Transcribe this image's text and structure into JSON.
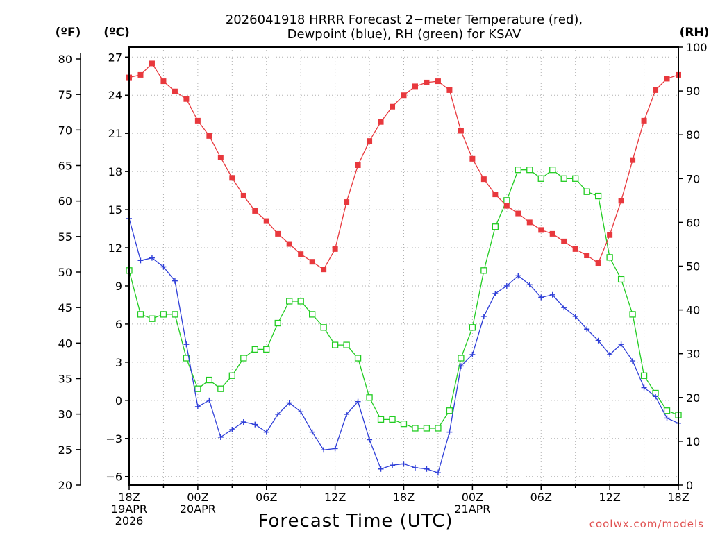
{
  "chart_data": {
    "type": "line",
    "title_line1": "2026041918 HRRR Forecast 2−meter Temperature (red),",
    "title_line2": "Dewpoint (blue), RH (green) for KSAV",
    "xlabel": "Forecast Time (UTC)",
    "credit": "coolwx.com/models",
    "unit_f": "(ºF)",
    "unit_c": "(ºC)",
    "unit_rh": "(RH)",
    "hours_range": [
      0,
      48
    ],
    "celsius_range": [
      -6.67,
      27.78
    ],
    "rh_range": [
      0,
      100
    ],
    "fahrenheit_ticks": [
      "20",
      "25",
      "30",
      "35",
      "40",
      "45",
      "50",
      "55",
      "60",
      "65",
      "70",
      "75",
      "80"
    ],
    "fahrenheit_values": [
      20,
      25,
      30,
      35,
      40,
      45,
      50,
      55,
      60,
      65,
      70,
      75,
      80
    ],
    "celsius_ticks": [
      "−6",
      "−3",
      "0",
      "3",
      "6",
      "9",
      "12",
      "15",
      "18",
      "21",
      "24",
      "27"
    ],
    "celsius_values": [
      -6,
      -3,
      0,
      3,
      6,
      9,
      12,
      15,
      18,
      21,
      24,
      27
    ],
    "rh_ticks": [
      "0",
      "10",
      "20",
      "30",
      "40",
      "50",
      "60",
      "70",
      "80",
      "90",
      "100"
    ],
    "rh_values": [
      0,
      10,
      20,
      30,
      40,
      50,
      60,
      70,
      80,
      90,
      100
    ],
    "x_ticks": [
      {
        "hour": 0,
        "lines": [
          "18Z",
          "19APR",
          "2026"
        ]
      },
      {
        "hour": 6,
        "lines": [
          "00Z",
          "20APR"
        ]
      },
      {
        "hour": 12,
        "lines": [
          "06Z"
        ]
      },
      {
        "hour": 18,
        "lines": [
          "12Z"
        ]
      },
      {
        "hour": 24,
        "lines": [
          "18Z"
        ]
      },
      {
        "hour": 30,
        "lines": [
          "00Z",
          "21APR"
        ]
      },
      {
        "hour": 36,
        "lines": [
          "06Z"
        ]
      },
      {
        "hour": 42,
        "lines": [
          "12Z"
        ]
      },
      {
        "hour": 48,
        "lines": [
          "18Z"
        ]
      }
    ],
    "colors": {
      "temperature": "#e8383d",
      "dewpoint": "#2f3fd8",
      "rh": "#22cc22",
      "grid": "#b0b0b0"
    },
    "series": [
      {
        "name": "Temperature",
        "unit": "C",
        "hours": [
          0,
          1,
          2,
          3,
          4,
          5,
          6,
          7,
          8,
          9,
          10,
          11,
          12,
          13,
          14,
          15,
          16,
          17,
          18,
          19,
          20,
          21,
          22,
          23,
          24,
          25,
          26,
          27,
          28,
          29,
          30,
          31,
          32,
          33,
          34,
          35,
          36,
          37,
          38,
          39,
          40,
          41,
          42,
          43,
          44,
          45,
          46,
          47,
          48
        ],
        "values": [
          25.4,
          25.6,
          26.5,
          25.1,
          24.3,
          23.7,
          22.0,
          20.8,
          19.1,
          17.5,
          16.1,
          14.9,
          14.1,
          13.1,
          12.3,
          11.5,
          10.9,
          10.3,
          11.9,
          15.6,
          18.5,
          20.4,
          21.9,
          23.1,
          24.0,
          24.7,
          25.0,
          25.1,
          24.4,
          21.2,
          19.0,
          17.4,
          16.2,
          15.3,
          14.7,
          14.0,
          13.4,
          13.1,
          12.5,
          11.9,
          11.4,
          10.8,
          13.0,
          15.7,
          18.9,
          22.0,
          24.4,
          25.3,
          25.6
        ]
      },
      {
        "name": "Dewpoint",
        "unit": "C",
        "hours": [
          0,
          1,
          2,
          3,
          4,
          5,
          6,
          7,
          8,
          9,
          10,
          11,
          12,
          13,
          14,
          15,
          16,
          17,
          18,
          19,
          20,
          21,
          22,
          23,
          24,
          25,
          26,
          27,
          28,
          29,
          30,
          31,
          32,
          33,
          34,
          35,
          36,
          37,
          38,
          39,
          40,
          41,
          42,
          43,
          44,
          45,
          46,
          47,
          48
        ],
        "values": [
          14.3,
          11.0,
          11.2,
          10.5,
          9.4,
          4.4,
          -0.5,
          0.0,
          -2.9,
          -2.3,
          -1.7,
          -1.9,
          -2.5,
          -1.1,
          -0.2,
          -0.9,
          -2.5,
          -3.9,
          -3.8,
          -1.1,
          -0.1,
          -3.1,
          -5.4,
          -5.1,
          -5.0,
          -5.3,
          -5.4,
          -5.7,
          -2.5,
          2.7,
          3.6,
          6.6,
          8.4,
          9.0,
          9.8,
          9.1,
          8.1,
          8.3,
          7.3,
          6.6,
          5.6,
          4.7,
          3.6,
          4.4,
          3.1,
          1.0,
          0.3,
          -1.4,
          -1.8
        ]
      },
      {
        "name": "RH",
        "unit": "%",
        "hours": [
          0,
          1,
          2,
          3,
          4,
          5,
          6,
          7,
          8,
          9,
          10,
          11,
          12,
          13,
          14,
          15,
          16,
          17,
          18,
          19,
          20,
          21,
          22,
          23,
          24,
          25,
          26,
          27,
          28,
          29,
          30,
          31,
          32,
          33,
          34,
          35,
          36,
          37,
          38,
          39,
          40,
          41,
          42,
          43,
          44,
          45,
          46,
          47,
          48
        ],
        "values": [
          49,
          39,
          38,
          39,
          39,
          29,
          22,
          24,
          22,
          25,
          29,
          31,
          31,
          37,
          42,
          42,
          39,
          36,
          32,
          32,
          29,
          20,
          15,
          15,
          14,
          13,
          13,
          13,
          17,
          29,
          36,
          49,
          59,
          65,
          72,
          72,
          70,
          72,
          70,
          70,
          67,
          66,
          52,
          47,
          39,
          25,
          21,
          17,
          16
        ]
      }
    ]
  }
}
